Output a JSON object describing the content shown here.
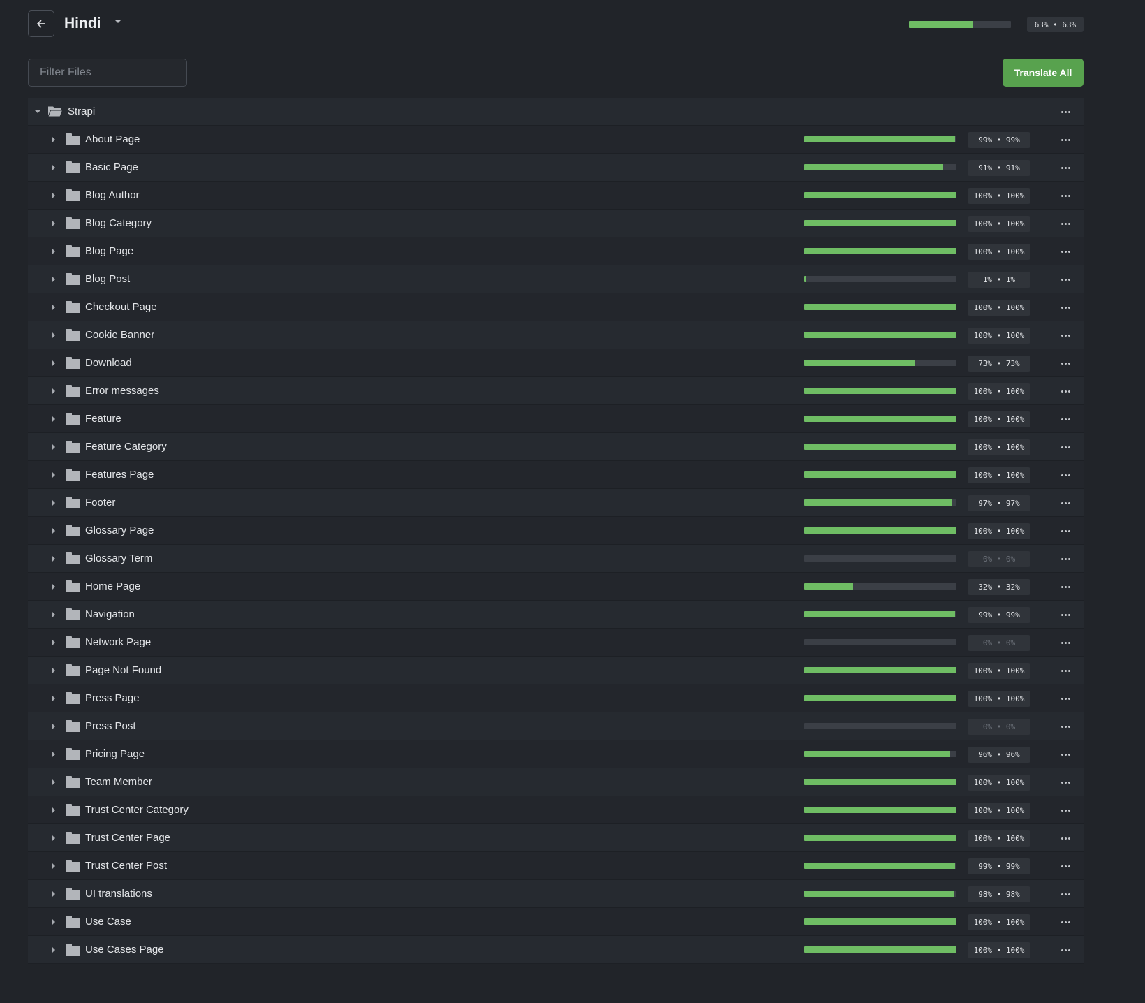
{
  "header": {
    "title": "Hindi",
    "overall_progress": 0.63,
    "overall_badge": "63% • 63%"
  },
  "toolbar": {
    "filter_placeholder": "Filter Files",
    "translate_all_label": "Translate All"
  },
  "colors": {
    "accent": "#58a24e",
    "progress_fill": "#6fbd64",
    "progress_track": "#3b3f46",
    "background": "#212429"
  },
  "icons": {
    "back": "arrow-left-icon",
    "folder": "folder-icon",
    "folder_open": "folder-open-icon",
    "more": "more-horizontal-icon",
    "expand": "chevron-right-icon",
    "collapse": "chevron-down-icon"
  },
  "tree": {
    "root": {
      "label": "Strapi",
      "expanded": true
    },
    "items": [
      {
        "label": "About Page",
        "progress": 99,
        "badge": "99% • 99%"
      },
      {
        "label": "Basic Page",
        "progress": 91,
        "badge": "91% • 91%"
      },
      {
        "label": "Blog Author",
        "progress": 100,
        "badge": "100% • 100%"
      },
      {
        "label": "Blog Category",
        "progress": 100,
        "badge": "100% • 100%"
      },
      {
        "label": "Blog Page",
        "progress": 100,
        "badge": "100% • 100%"
      },
      {
        "label": "Blog Post",
        "progress": 1,
        "badge": "1% • 1%"
      },
      {
        "label": "Checkout Page",
        "progress": 100,
        "badge": "100% • 100%"
      },
      {
        "label": "Cookie Banner",
        "progress": 100,
        "badge": "100% • 100%"
      },
      {
        "label": "Download",
        "progress": 73,
        "badge": "73% • 73%"
      },
      {
        "label": "Error messages",
        "progress": 100,
        "badge": "100% • 100%"
      },
      {
        "label": "Feature",
        "progress": 100,
        "badge": "100% • 100%"
      },
      {
        "label": "Feature Category",
        "progress": 100,
        "badge": "100% • 100%"
      },
      {
        "label": "Features Page",
        "progress": 100,
        "badge": "100% • 100%"
      },
      {
        "label": "Footer",
        "progress": 97,
        "badge": "97% • 97%"
      },
      {
        "label": "Glossary Page",
        "progress": 100,
        "badge": "100% • 100%"
      },
      {
        "label": "Glossary Term",
        "progress": 0,
        "badge": "0% • 0%"
      },
      {
        "label": "Home Page",
        "progress": 32,
        "badge": "32% • 32%"
      },
      {
        "label": "Navigation",
        "progress": 99,
        "badge": "99% • 99%"
      },
      {
        "label": "Network Page",
        "progress": 0,
        "badge": "0% • 0%"
      },
      {
        "label": "Page Not Found",
        "progress": 100,
        "badge": "100% • 100%"
      },
      {
        "label": "Press Page",
        "progress": 100,
        "badge": "100% • 100%"
      },
      {
        "label": "Press Post",
        "progress": 0,
        "badge": "0% • 0%"
      },
      {
        "label": "Pricing Page",
        "progress": 96,
        "badge": "96% • 96%"
      },
      {
        "label": "Team Member",
        "progress": 100,
        "badge": "100% • 100%"
      },
      {
        "label": "Trust Center Category",
        "progress": 100,
        "badge": "100% • 100%"
      },
      {
        "label": "Trust Center Page",
        "progress": 100,
        "badge": "100% • 100%"
      },
      {
        "label": "Trust Center Post",
        "progress": 99,
        "badge": "99% • 99%"
      },
      {
        "label": "UI translations",
        "progress": 98,
        "badge": "98% • 98%"
      },
      {
        "label": "Use Case",
        "progress": 100,
        "badge": "100% • 100%"
      },
      {
        "label": "Use Cases Page",
        "progress": 100,
        "badge": "100% • 100%"
      }
    ]
  }
}
